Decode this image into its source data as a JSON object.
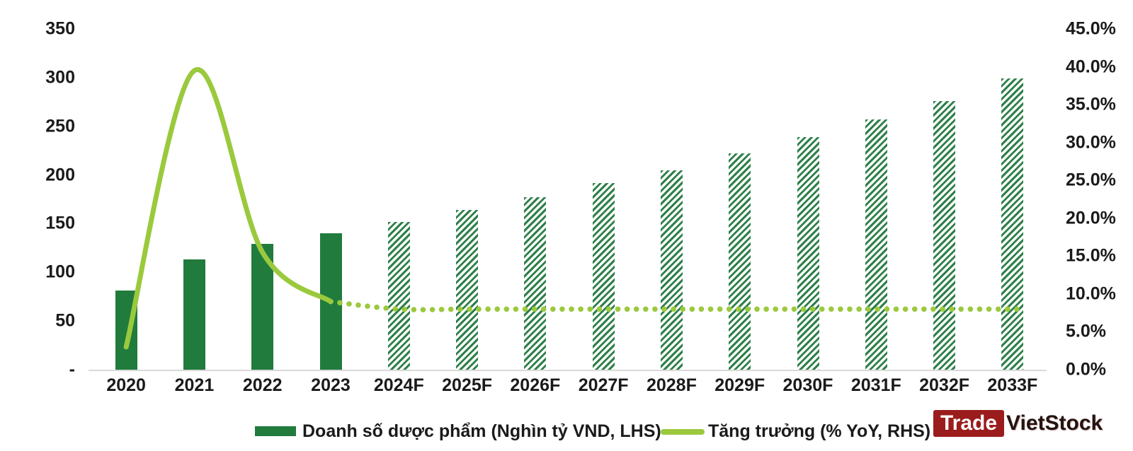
{
  "chart_data": {
    "type": "bar+line",
    "categories": [
      "2020",
      "2021",
      "2022",
      "2023",
      "2024F",
      "2025F",
      "2026F",
      "2027F",
      "2028F",
      "2029F",
      "2030F",
      "2031F",
      "2032F",
      "2033F"
    ],
    "historical_count": 4,
    "bar_series": {
      "name": "Doanh số dược phẩm (Nghìn tỷ VND, LHS)",
      "axis": "left",
      "values": [
        81,
        113,
        129,
        140,
        152,
        164,
        177,
        192,
        205,
        222,
        239,
        257,
        276,
        299
      ],
      "solid_color": "#217b3d",
      "hatch_color": "#2e8049"
    },
    "line_series": {
      "name": "Tăng trưởng (% YoY, RHS)",
      "axis": "right",
      "values": [
        3.0,
        39.5,
        15.5,
        9.0,
        8.0,
        8.0,
        8.0,
        8.0,
        8.0,
        8.0,
        8.0,
        8.0,
        8.0,
        8.0
      ],
      "color": "#9bc93d"
    },
    "left_axis": {
      "min": 0,
      "max": 350,
      "tick_step": 50,
      "tick_labels": [
        "350",
        "300",
        "250",
        "200",
        "150",
        "100",
        "50",
        "-"
      ]
    },
    "right_axis": {
      "min": 0,
      "max": 45,
      "tick_step": 5,
      "tick_labels": [
        "45.0%",
        "40.0%",
        "35.0%",
        "30.0%",
        "25.0%",
        "20.0%",
        "15.0%",
        "10.0%",
        "5.0%",
        "0.0%"
      ]
    },
    "grid": false,
    "legend_position": "bottom",
    "title": ""
  },
  "legend": {
    "bar_label": "Doanh số dược phẩm (Nghìn tỷ VND, LHS)",
    "line_label": "Tăng trưởng (% YoY, RHS)"
  },
  "branding": {
    "logo_left": "Trade",
    "logo_right": "VietStock",
    "logo_bg": "#9b1c1c"
  },
  "colors": {
    "text": "#1a1a1a",
    "axis_line": "#d9d9d9"
  }
}
